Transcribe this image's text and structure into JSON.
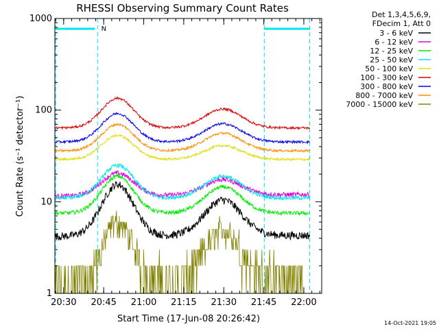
{
  "chart_data": {
    "type": "line",
    "title": "RHESSI Observing Summary Count Rates",
    "xlabel_prefix": "Start Time (",
    "xlabel_date": "17-Jun-08 20:26:42",
    "xlabel_suffix": ")",
    "ylabel": "Count Rate (s⁻¹ detector⁻¹)",
    "y_scale": "log",
    "ylim": [
      1,
      1000
    ],
    "y_ticks": [
      {
        "value": 1,
        "label": "1"
      },
      {
        "value": 10,
        "label": "10"
      },
      {
        "value": 100,
        "label": "100"
      },
      {
        "value": 1000,
        "label": "1000"
      }
    ],
    "x_unit": "minutes after 20:26:42",
    "xlim": [
      0,
      100
    ],
    "x_ticks": [
      {
        "value": 3.3,
        "label": "20:30"
      },
      {
        "value": 18.3,
        "label": "20:45"
      },
      {
        "value": 33.3,
        "label": "21:00"
      },
      {
        "value": 48.3,
        "label": "21:15"
      },
      {
        "value": 63.3,
        "label": "21:30"
      },
      {
        "value": 78.3,
        "label": "21:45"
      },
      {
        "value": 93.3,
        "label": "22:00"
      }
    ],
    "legend": {
      "placement": "right",
      "header": [
        "Det 1,3,4,5,6,9,",
        "FDecim 1, Att 0"
      ]
    },
    "markers": {
      "night_lines_x": [
        0.3,
        16.0,
        78.5,
        95.5
      ],
      "night_bars": [
        [
          0.3,
          15.0
        ],
        [
          78.5,
          95.5
        ]
      ],
      "night_label": "N",
      "night_label_x": 17.4,
      "color": "#00e5ee"
    },
    "series": [
      {
        "name": "3 - 6 keV",
        "color": "#000000",
        "start": 4.2,
        "peak1": 15.5,
        "peak2": 10.5,
        "end": 4.3,
        "noise": 0.1,
        "x_end": 95.5
      },
      {
        "name": "6 - 12 keV",
        "color": "#dd00dd",
        "start": 11.5,
        "peak1": 20.5,
        "peak2": 17.5,
        "end": 12.0,
        "noise": 0.06,
        "x_end": 95.5
      },
      {
        "name": "12 - 25 keV",
        "color": "#00ee00",
        "start": 7.5,
        "peak1": 19.0,
        "peak2": 14.5,
        "end": 7.5,
        "noise": 0.05,
        "x_end": 95.5
      },
      {
        "name": "25 - 50 keV",
        "color": "#00e5ee",
        "start": 11.0,
        "peak1": 25.0,
        "peak2": 19.0,
        "end": 11.0,
        "noise": 0.05,
        "x_end": 95.5
      },
      {
        "name": "50 - 100 keV",
        "color": "#dddd00",
        "start": 29.0,
        "peak1": 53.0,
        "peak2": 41.0,
        "end": 29.0,
        "noise": 0.03,
        "x_end": 95.5
      },
      {
        "name": "100 - 300 keV",
        "color": "#dd0000",
        "start": 64.0,
        "peak1": 135.0,
        "peak2": 103.0,
        "end": 64.0,
        "noise": 0.03,
        "x_end": 95.5
      },
      {
        "name": "300 - 800 keV",
        "color": "#0000ee",
        "start": 45.0,
        "peak1": 92.0,
        "peak2": 71.0,
        "end": 45.0,
        "noise": 0.03,
        "x_end": 95.5
      },
      {
        "name": "800 - 7000 keV",
        "color": "#ff8c00",
        "start": 36.0,
        "peak1": 70.0,
        "peak2": 56.0,
        "end": 36.0,
        "noise": 0.03,
        "x_end": 95.5
      },
      {
        "name": "7000 - 15000 keV",
        "color": "#808000",
        "start": 1.0,
        "peak1": 6.0,
        "peak2": 5.0,
        "end": 1.5,
        "noise": 0.22,
        "x_end": 93.0
      }
    ],
    "peak1_x": 23.5,
    "peak2_x": 63.0,
    "peak_width": 8.5
  },
  "footer": {
    "timestamp": "14-Oct-2021 19:05"
  }
}
